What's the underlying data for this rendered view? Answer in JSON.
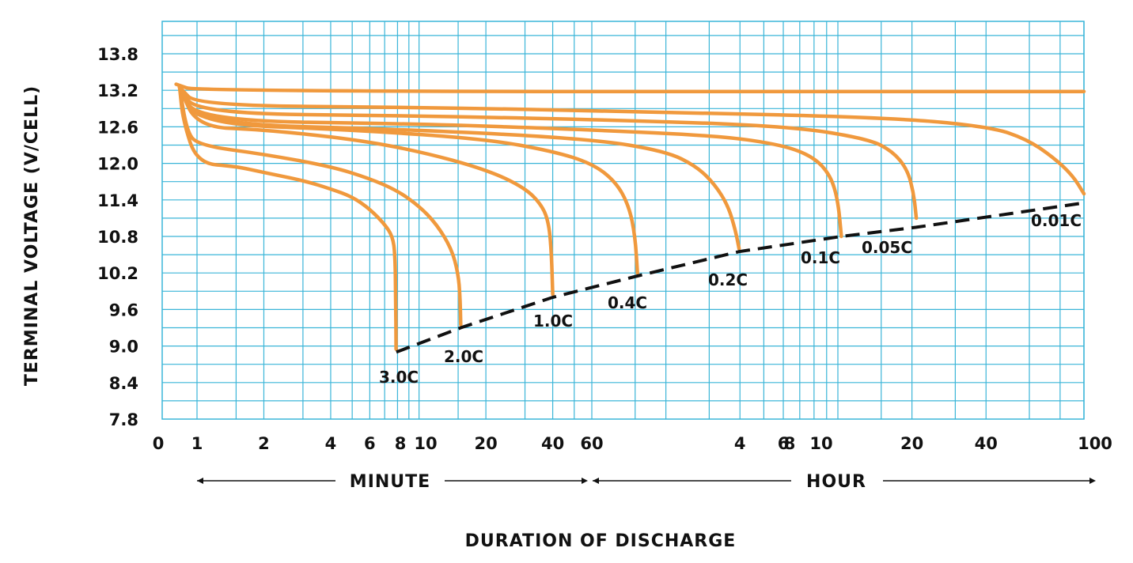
{
  "chart_data": {
    "type": "line",
    "title": "",
    "xlabel": "DURATION OF DISCHARGE",
    "ylabel": "TERMINAL VOLTAGE (V/CELL)",
    "ylim": [
      7.8,
      14.4
    ],
    "y_ticks": [
      "13.8",
      "13.2",
      "12.6",
      "12.0",
      "11.4",
      "10.8",
      "10.2",
      "9.6",
      "9.0",
      "8.4",
      "7.8"
    ],
    "x_ticks": [
      "0",
      "1",
      "2",
      "4",
      "6",
      "8",
      "10",
      "20",
      "40",
      "60",
      "4",
      "6",
      "8",
      "10",
      "20",
      "40",
      "100"
    ],
    "x_spans": [
      {
        "label": "MINUTE",
        "from_min": 1,
        "to_min": 60
      },
      {
        "label": "HOUR",
        "from_min": 60,
        "to_min": 6000
      }
    ],
    "x_unit_note": "x values are minutes of discharge",
    "grid": true,
    "colors": {
      "curve": "#F0993D",
      "grid": "#3AB5D8",
      "cutoff": "#111111"
    },
    "series": [
      {
        "name": "3.0C",
        "x": [
          0.5,
          0.6,
          1,
          1.5,
          2,
          3,
          4,
          5,
          6,
          7,
          7.6,
          7.8,
          7.85,
          7.88
        ],
        "y": [
          13.25,
          12.7,
          12.0,
          11.95,
          11.85,
          11.72,
          11.58,
          11.45,
          11.25,
          11.0,
          10.8,
          10.5,
          9.8,
          8.95
        ]
      },
      {
        "name": "2.0C",
        "x": [
          0.5,
          0.7,
          1,
          2,
          4,
          6,
          8,
          10,
          12,
          14,
          15,
          15.3,
          15.4
        ],
        "y": [
          13.25,
          12.55,
          12.3,
          12.15,
          11.95,
          11.75,
          11.55,
          11.3,
          11.0,
          10.6,
          10.2,
          9.8,
          9.35
        ]
      },
      {
        "name": "1.0C",
        "x": [
          0.5,
          1,
          2,
          5,
          10,
          20,
          30,
          36,
          38.5,
          39.5,
          40
        ],
        "y": [
          13.25,
          12.6,
          12.55,
          12.4,
          12.2,
          11.9,
          11.6,
          11.3,
          11.0,
          10.5,
          9.85
        ]
      },
      {
        "name": "0.4C",
        "x": [
          0.5,
          1,
          5,
          20,
          40,
          60,
          75,
          85,
          90,
          92
        ],
        "y": [
          13.25,
          12.65,
          12.55,
          12.4,
          12.2,
          12.0,
          11.7,
          11.3,
          10.8,
          10.2
        ]
      },
      {
        "name": "0.2C",
        "x": [
          0.5,
          1,
          10,
          60,
          120,
          160,
          190,
          215,
          230,
          238
        ],
        "y": [
          13.25,
          12.65,
          12.55,
          12.4,
          12.2,
          11.95,
          11.65,
          11.3,
          10.9,
          10.6
        ]
      },
      {
        "name": "0.1C",
        "x": [
          0.5,
          1,
          10,
          60,
          200,
          360,
          480,
          560,
          600,
          620
        ],
        "y": [
          13.25,
          12.7,
          12.65,
          12.55,
          12.45,
          12.3,
          12.1,
          11.8,
          11.4,
          10.8
        ]
      },
      {
        "name": "0.05C",
        "x": [
          0.5,
          1,
          10,
          100,
          400,
          800,
          1000,
          1150,
          1220,
          1250
        ],
        "y": [
          13.25,
          12.82,
          12.78,
          12.7,
          12.6,
          12.4,
          12.2,
          11.9,
          11.5,
          11.1
        ]
      },
      {
        "name": "0.01C",
        "x": [
          0.5,
          1,
          10,
          100,
          1000,
          2500,
          3500,
          4500,
          5400,
          6000
        ],
        "y": [
          13.25,
          12.95,
          12.92,
          12.85,
          12.75,
          12.6,
          12.4,
          12.1,
          11.8,
          11.5
        ]
      },
      {
        "name": "",
        "x": [
          0.4,
          1,
          6000
        ],
        "y": [
          13.3,
          13.18,
          13.18
        ]
      }
    ],
    "cutoff_line": {
      "x": [
        7.9,
        15.4,
        40,
        92,
        238,
        620,
        1250,
        6000
      ],
      "y": [
        8.9,
        9.3,
        9.8,
        10.15,
        10.55,
        10.8,
        10.95,
        11.35
      ]
    },
    "curve_labels": [
      "3.0C",
      "2.0C",
      "1.0C",
      "0.4C",
      "0.2C",
      "0.1C",
      "0.05C",
      "0.01C"
    ]
  }
}
